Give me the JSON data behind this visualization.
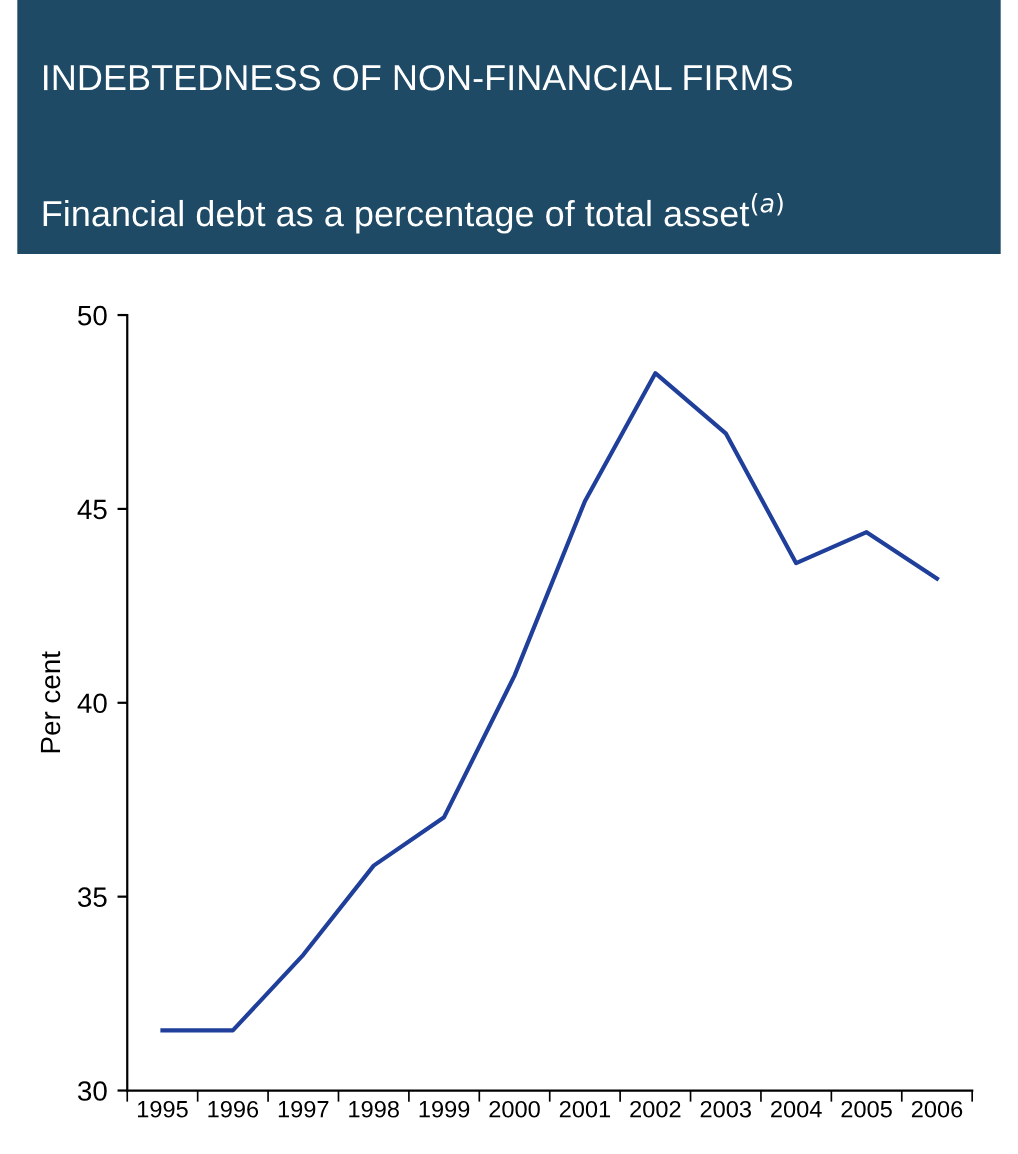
{
  "chart_data": {
    "type": "line",
    "title": "INDEBTEDNESS OF NON-FINANCIAL FIRMS",
    "subtitle": "Financial debt as a percentage of total asset$^{(a)}$",
    "ylabel": "Per cent",
    "categories": [
      "1995",
      "1996",
      "1997",
      "1998",
      "1999",
      "2000",
      "2001",
      "2002",
      "2003",
      "2004",
      "2005",
      "2006"
    ],
    "series": [
      {
        "color": "#1f3f9a",
        "values": [
          31.55,
          31.55,
          33.5,
          35.8,
          37.05,
          40.7,
          45.2,
          48.5,
          46.95,
          43.6,
          44.4,
          43.2
        ]
      }
    ],
    "ylim": [
      30,
      50
    ],
    "yticks": [
      30,
      35,
      40,
      45,
      50
    ],
    "grid": false,
    "marker": "none",
    "line_style": "solid"
  }
}
